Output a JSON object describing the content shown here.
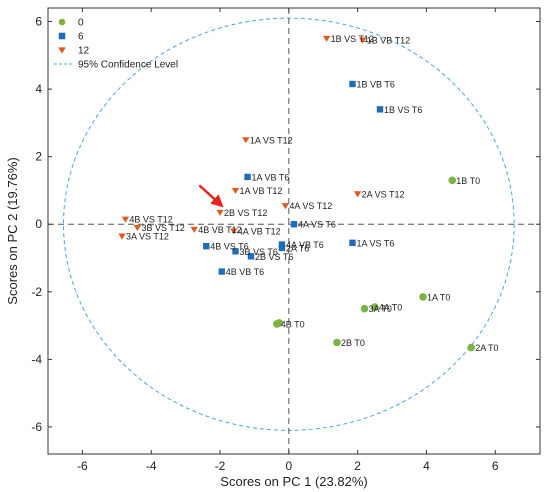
{
  "chart_data": {
    "type": "scatter",
    "title": "",
    "xlabel": "Scores on PC 1 (23.82%)",
    "ylabel": "Scores on PC 2 (19.76%)",
    "xlim": [
      -7,
      7.3
    ],
    "ylim": [
      -6.8,
      6.4
    ],
    "xticks": [
      -6,
      -4,
      -2,
      0,
      2,
      4,
      6
    ],
    "yticks": [
      -6,
      -4,
      -2,
      0,
      2,
      4,
      6
    ],
    "xtick_labels": [
      "-6",
      "-4",
      "-2",
      "0",
      "2",
      "4",
      "6"
    ],
    "ytick_labels": [
      "-6",
      "-4",
      "-2",
      "0",
      "2",
      "4",
      "6"
    ],
    "grid": false,
    "legend": {
      "placement": "top-left",
      "entries": [
        {
          "series": "0",
          "label": "0",
          "color": "#7cb342",
          "marker": "circle"
        },
        {
          "series": "6",
          "label": "6",
          "color": "#1f6eb5",
          "marker": "square"
        },
        {
          "series": "12",
          "label": "12",
          "color": "#e05a1c",
          "marker": "triangle-down"
        },
        {
          "series": "ellipse",
          "label": "95% Confidence Level",
          "color": "#4da6e0",
          "marker": "dashed-line"
        }
      ]
    },
    "confidence_ellipse": {
      "label": "95% Confidence Level",
      "center": [
        0,
        0
      ],
      "rx": 6.55,
      "ry": 6.1,
      "color": "#4da6e0"
    },
    "reference_lines": {
      "x": 0,
      "y": 0,
      "style": "dashed",
      "color": "#555555"
    },
    "arrow": {
      "from": [
        -2.6,
        1.15
      ],
      "to": [
        -1.95,
        0.55
      ],
      "color": "#e8231b"
    },
    "series": [
      {
        "name": "0",
        "color": "#7cb342",
        "marker": "circle",
        "points": [
          {
            "x": 4.75,
            "y": 1.3,
            "label": "1B T0"
          },
          {
            "x": 3.9,
            "y": -2.15,
            "label": "1A T0"
          },
          {
            "x": 2.5,
            "y": -2.45,
            "label": "4A T0"
          },
          {
            "x": 2.2,
            "y": -2.5,
            "label": "3A T0"
          },
          {
            "x": -0.35,
            "y": -2.95,
            "label": "4B T0"
          },
          {
            "x": -0.28,
            "y": -2.92,
            "label": ""
          },
          {
            "x": 1.4,
            "y": -3.5,
            "label": "2B T0"
          },
          {
            "x": 5.3,
            "y": -3.65,
            "label": "2A T0"
          }
        ]
      },
      {
        "name": "6",
        "color": "#1f6eb5",
        "marker": "square",
        "points": [
          {
            "x": 1.85,
            "y": 4.15,
            "label": "1B VB T6"
          },
          {
            "x": 2.65,
            "y": 3.4,
            "label": "1B VS T6"
          },
          {
            "x": -1.2,
            "y": 1.4,
            "label": "1A VB T6"
          },
          {
            "x": 0.15,
            "y": 0.0,
            "label": "4A VS T6"
          },
          {
            "x": 1.85,
            "y": -0.55,
            "label": "1A VS T6"
          },
          {
            "x": -0.2,
            "y": -0.6,
            "label": "4A VB T6"
          },
          {
            "x": -0.2,
            "y": -0.7,
            "label": "2A T6"
          },
          {
            "x": -2.4,
            "y": -0.65,
            "label": "4B VS T6"
          },
          {
            "x": -1.55,
            "y": -0.8,
            "label": "3B VS T6"
          },
          {
            "x": -1.1,
            "y": -0.95,
            "label": "2B VS T6"
          },
          {
            "x": -1.95,
            "y": -1.4,
            "label": "4B VB T6"
          }
        ]
      },
      {
        "name": "12",
        "color": "#e05a1c",
        "marker": "triangle-down",
        "points": [
          {
            "x": 1.1,
            "y": 5.5,
            "label": "1B VS T12"
          },
          {
            "x": 2.15,
            "y": 5.45,
            "label": "1B VB T12"
          },
          {
            "x": -1.25,
            "y": 2.5,
            "label": "1A VS T12"
          },
          {
            "x": -1.55,
            "y": 1.0,
            "label": "1A VB T12"
          },
          {
            "x": 2.0,
            "y": 0.9,
            "label": "2A VS T12"
          },
          {
            "x": -0.1,
            "y": 0.55,
            "label": "4A VS T12"
          },
          {
            "x": -2.0,
            "y": 0.35,
            "label": "2B VS T12"
          },
          {
            "x": -4.75,
            "y": 0.15,
            "label": "4B VS T12"
          },
          {
            "x": -4.4,
            "y": -0.1,
            "label": "3B VS T12"
          },
          {
            "x": -4.85,
            "y": -0.35,
            "label": "3A VS T12"
          },
          {
            "x": -2.75,
            "y": -0.15,
            "label": "4B VB T12"
          },
          {
            "x": -1.6,
            "y": -0.2,
            "label": "4A VB T12"
          }
        ]
      }
    ]
  }
}
